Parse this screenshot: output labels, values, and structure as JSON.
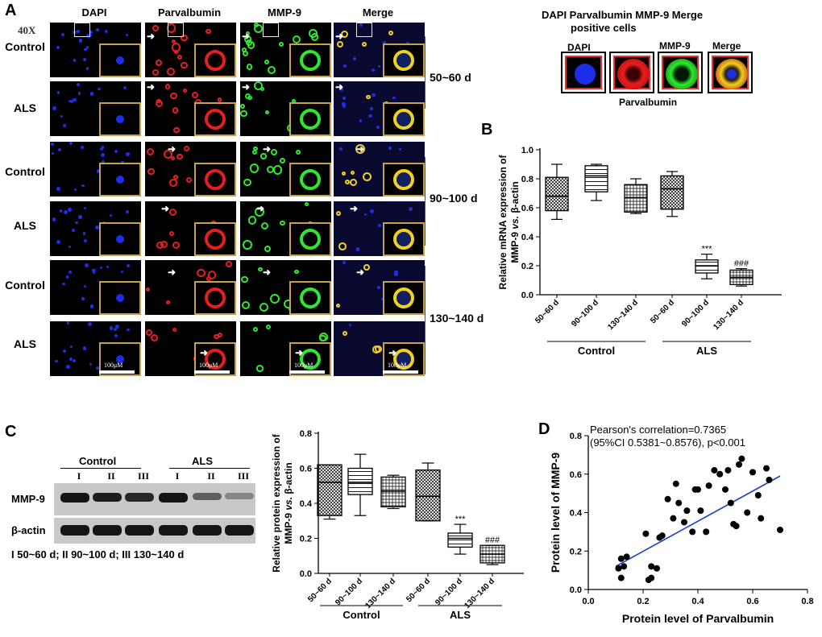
{
  "panel_a": {
    "letter": "A",
    "magnification": "40X",
    "columns": [
      "DAPI",
      "Parvalbumin",
      "MMP-9",
      "Merge"
    ],
    "rows": [
      "Control",
      "ALS",
      "Control",
      "ALS",
      "Control",
      "ALS"
    ],
    "ages": [
      "50~60 d",
      "90~100 d",
      "130~140 d"
    ],
    "scale_label": "100μM",
    "legend_title_line1": "DAPI Parvalbumin MMP-9 Merge",
    "legend_title_line2": "positive cells",
    "legend_labels": [
      "DAPI",
      "Parvalbumin",
      "MMP-9",
      "Merge"
    ],
    "colors": {
      "dapi": "#1e2ee8",
      "parvalbumin": "#e81e1e",
      "mmp9": "#2ee82e",
      "merge": "#f0d020",
      "inset_border": "#c8a24a"
    }
  },
  "panel_b": {
    "letter": "B",
    "chart_data": {
      "type": "box",
      "ylabel_line1": "Relative mRNA expression of",
      "ylabel_line2": "MMP-9 vs. β-actin",
      "ylim": [
        0.0,
        1.0
      ],
      "yticks": [
        "0.0",
        "0.2",
        "0.4",
        "0.6",
        "0.8",
        "1.0"
      ],
      "categories": [
        "50~60 d",
        "90~100 d",
        "130~140 d",
        "50~60 d",
        "90~100 d",
        "130~140 d"
      ],
      "groups": [
        {
          "name": "Control",
          "members": [
            0,
            1,
            2
          ]
        },
        {
          "name": "ALS",
          "members": [
            3,
            4,
            5
          ]
        }
      ],
      "boxes": [
        {
          "min": 0.52,
          "q1": 0.58,
          "median": 0.68,
          "q3": 0.81,
          "max": 0.9
        },
        {
          "min": 0.65,
          "q1": 0.71,
          "median": 0.82,
          "q3": 0.89,
          "max": 0.9
        },
        {
          "min": 0.56,
          "q1": 0.57,
          "median": 0.67,
          "q3": 0.76,
          "max": 0.8
        },
        {
          "min": 0.54,
          "q1": 0.59,
          "median": 0.73,
          "q3": 0.82,
          "max": 0.85
        },
        {
          "min": 0.11,
          "q1": 0.15,
          "median": 0.2,
          "q3": 0.24,
          "max": 0.28
        },
        {
          "min": 0.06,
          "q1": 0.07,
          "median": 0.12,
          "q3": 0.17,
          "max": 0.18
        }
      ],
      "annotations": [
        "",
        "",
        "",
        "",
        "***",
        "###"
      ]
    }
  },
  "panel_c": {
    "letter": "C",
    "blot": {
      "group_labels": [
        "Control",
        "ALS"
      ],
      "lane_labels": [
        "I",
        "II",
        "III",
        "I",
        "II",
        "III"
      ],
      "row_labels": [
        "MMP-9",
        "β-actin"
      ],
      "mmp9_intensity": [
        0.95,
        0.9,
        0.85,
        0.95,
        0.55,
        0.35
      ],
      "actin_intensity": [
        1,
        1,
        1,
        1,
        1,
        1
      ],
      "footnote": "I 50~60 d; II 90~100 d; III 130~140 d"
    },
    "chart_data": {
      "type": "box",
      "ylabel_line1": "Relative protein expression of",
      "ylabel_line2": "MMP-9 vs. β-actin",
      "ylim": [
        0.0,
        0.8
      ],
      "yticks": [
        "0.0",
        "0.2",
        "0.4",
        "0.6",
        "0.8"
      ],
      "categories": [
        "50~60 d",
        "90~100 d",
        "130~140 d",
        "50~60 d",
        "90~100 d",
        "130~140 d"
      ],
      "groups": [
        {
          "name": "Control",
          "members": [
            0,
            1,
            2
          ]
        },
        {
          "name": "ALS",
          "members": [
            3,
            4,
            5
          ]
        }
      ],
      "boxes": [
        {
          "min": 0.31,
          "q1": 0.33,
          "median": 0.52,
          "q3": 0.62,
          "max": 0.62
        },
        {
          "min": 0.33,
          "q1": 0.45,
          "median": 0.52,
          "q3": 0.6,
          "max": 0.68
        },
        {
          "min": 0.37,
          "q1": 0.38,
          "median": 0.47,
          "q3": 0.55,
          "max": 0.56
        },
        {
          "min": 0.3,
          "q1": 0.3,
          "median": 0.44,
          "q3": 0.59,
          "max": 0.63
        },
        {
          "min": 0.11,
          "q1": 0.15,
          "median": 0.2,
          "q3": 0.23,
          "max": 0.28
        },
        {
          "min": 0.05,
          "q1": 0.06,
          "median": 0.11,
          "q3": 0.16,
          "max": 0.16
        }
      ],
      "annotations": [
        "",
        "",
        "",
        "",
        "***",
        "###"
      ]
    }
  },
  "panel_d": {
    "letter": "D",
    "chart_data": {
      "type": "scatter",
      "annotation_line1": "Pearson's correlation=0.7365",
      "annotation_line2": "(95%CI 0.5381~0.8576), p<0.001",
      "xlabel": "Protein level of Parvalbumin",
      "ylabel": "Protein level of MMP-9",
      "xlim": [
        0.0,
        0.8
      ],
      "ylim": [
        0.0,
        0.8
      ],
      "xticks": [
        "0.0",
        "0.2",
        "0.4",
        "0.6",
        "0.8"
      ],
      "yticks": [
        "0.0",
        "0.2",
        "0.4",
        "0.6",
        "0.8"
      ],
      "fit_line": {
        "x0": 0.1,
        "y0": 0.12,
        "x1": 0.7,
        "y1": 0.59
      },
      "points": [
        [
          0.11,
          0.11
        ],
        [
          0.12,
          0.16
        ],
        [
          0.12,
          0.06
        ],
        [
          0.13,
          0.12
        ],
        [
          0.14,
          0.17
        ],
        [
          0.21,
          0.29
        ],
        [
          0.22,
          0.05
        ],
        [
          0.23,
          0.06
        ],
        [
          0.23,
          0.12
        ],
        [
          0.25,
          0.11
        ],
        [
          0.26,
          0.27
        ],
        [
          0.27,
          0.28
        ],
        [
          0.29,
          0.47
        ],
        [
          0.31,
          0.37
        ],
        [
          0.32,
          0.55
        ],
        [
          0.33,
          0.45
        ],
        [
          0.35,
          0.35
        ],
        [
          0.36,
          0.41
        ],
        [
          0.38,
          0.3
        ],
        [
          0.39,
          0.52
        ],
        [
          0.4,
          0.52
        ],
        [
          0.41,
          0.41
        ],
        [
          0.43,
          0.3
        ],
        [
          0.44,
          0.54
        ],
        [
          0.46,
          0.62
        ],
        [
          0.48,
          0.6
        ],
        [
          0.5,
          0.52
        ],
        [
          0.51,
          0.62
        ],
        [
          0.52,
          0.45
        ],
        [
          0.53,
          0.34
        ],
        [
          0.54,
          0.33
        ],
        [
          0.55,
          0.65
        ],
        [
          0.56,
          0.68
        ],
        [
          0.58,
          0.4
        ],
        [
          0.6,
          0.61
        ],
        [
          0.62,
          0.49
        ],
        [
          0.63,
          0.37
        ],
        [
          0.65,
          0.63
        ],
        [
          0.66,
          0.57
        ],
        [
          0.7,
          0.31
        ]
      ]
    }
  }
}
